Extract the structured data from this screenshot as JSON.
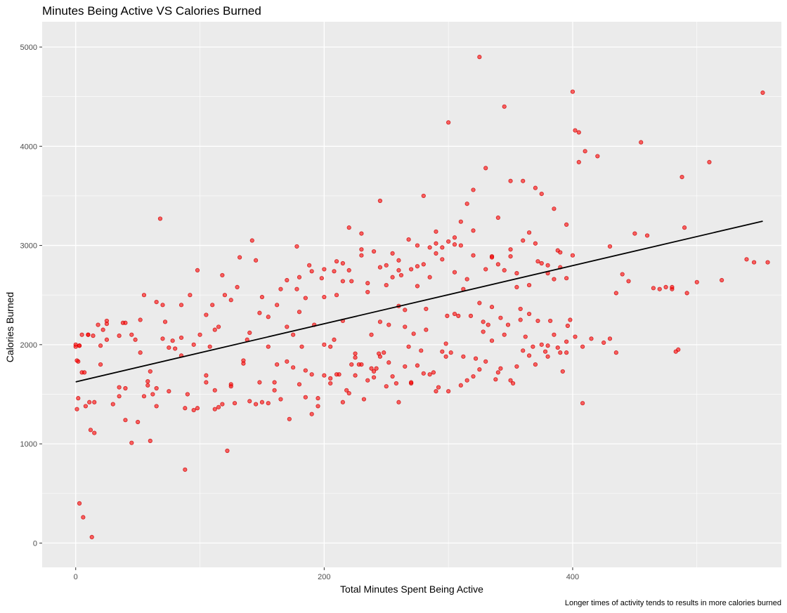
{
  "chart_data": {
    "type": "scatter",
    "title": "Minutes Being Active VS Calories Burned",
    "xlabel": "Total Minutes Spent Being Active",
    "ylabel": "Calories Burned",
    "caption": "Longer times of activity tends to results in more calories burned",
    "xlim": [
      -27,
      568
    ],
    "ylim": [
      -245,
      5255
    ],
    "x_ticks": [
      0,
      200,
      400
    ],
    "y_ticks": [
      0,
      1000,
      2000,
      3000,
      4000,
      5000
    ],
    "grid": true,
    "colors": {
      "points": "#ff0000",
      "line": "#000000",
      "panel": "#ebebeb",
      "grid": "#ffffff"
    },
    "trend_line": {
      "x": [
        0,
        553
      ],
      "y": [
        1625,
        3245
      ]
    },
    "series": [
      {
        "x": [
          0,
          1,
          2,
          3,
          5,
          5,
          8,
          10,
          12,
          15,
          18,
          20,
          22,
          25,
          30,
          35,
          38,
          40,
          45,
          50,
          52,
          55,
          58,
          60,
          62,
          65,
          68,
          70,
          72,
          75,
          80,
          85,
          88,
          90,
          95,
          98,
          100,
          105,
          108,
          110,
          112,
          115,
          118,
          120,
          125,
          128,
          130,
          135,
          138,
          140,
          142,
          145,
          148,
          150,
          155,
          160,
          162,
          165,
          170,
          172,
          175,
          178,
          180,
          182,
          185,
          188,
          190,
          195,
          198,
          200,
          205,
          208,
          210,
          212,
          215,
          218,
          220,
          222,
          225,
          228,
          230,
          232,
          235,
          238,
          240,
          242,
          245,
          248,
          250,
          252,
          255,
          258,
          260,
          262,
          265,
          268,
          270,
          272,
          275,
          278,
          280,
          282,
          285,
          288,
          290,
          292,
          295,
          298,
          300,
          302,
          305,
          308,
          310,
          312,
          315,
          318,
          320,
          322,
          325,
          328,
          330,
          332,
          335,
          338,
          340,
          342,
          345,
          348,
          350,
          352,
          355,
          358,
          360,
          362,
          365,
          368,
          370,
          372,
          375,
          378,
          380,
          382,
          385,
          388,
          390,
          392,
          395,
          398,
          400,
          402,
          405,
          408,
          410,
          415,
          420,
          425,
          430,
          435,
          440,
          445,
          450,
          455,
          460,
          465,
          470,
          480,
          485,
          490,
          500,
          510,
          520,
          540,
          553,
          0,
          2,
          3,
          7,
          11,
          14,
          20,
          25,
          35,
          40,
          48,
          52,
          58,
          65,
          70,
          78,
          85,
          92,
          98,
          105,
          112,
          118,
          125,
          132,
          140,
          148,
          155,
          162,
          170,
          178,
          185,
          192,
          200,
          208,
          215,
          222,
          230,
          238,
          245,
          252,
          260,
          268,
          275,
          282,
          290,
          298,
          305,
          312,
          320,
          328,
          335,
          342,
          350,
          358,
          365,
          372,
          380,
          388,
          395,
          402,
          150,
          160,
          170,
          180,
          190,
          200,
          210,
          220,
          230,
          240,
          250,
          260,
          270,
          280,
          290,
          300,
          310,
          320,
          330,
          340,
          350,
          360,
          370,
          380,
          390,
          15,
          25,
          35,
          45,
          55,
          65,
          75,
          85,
          95,
          105,
          115,
          125,
          135,
          145,
          155,
          165,
          175,
          185,
          195,
          205,
          215,
          225,
          235,
          245,
          255,
          265,
          275,
          285,
          295,
          305,
          315,
          325,
          335,
          345,
          355,
          365,
          375,
          385,
          395,
          1,
          3,
          6,
          10,
          13,
          40,
          60,
          88,
          112,
          122,
          244,
          299,
          396,
          405,
          408,
          430,
          435,
          475,
          480,
          483,
          488,
          492,
          546,
          557,
          205,
          215,
          225,
          235,
          245,
          255,
          265,
          275,
          285,
          295,
          305,
          315,
          325,
          335,
          345,
          355,
          365,
          375,
          385,
          395,
          180,
          190,
          200,
          210,
          220,
          230,
          240,
          250,
          260,
          270,
          280,
          290,
          300,
          310,
          320,
          330,
          340,
          350,
          360,
          370,
          380,
          390,
          400
        ],
        "y": [
          2000,
          1350,
          1460,
          1990,
          2100,
          1720,
          1380,
          2100,
          1140,
          1110,
          2200,
          1800,
          2150,
          2050,
          1400,
          1570,
          2220,
          1240,
          1010,
          1220,
          2250,
          2500,
          1590,
          1730,
          1500,
          1560,
          3270,
          2060,
          2230,
          1970,
          1960,
          2400,
          1360,
          1500,
          2000,
          1360,
          2100,
          1620,
          1980,
          2400,
          1350,
          2180,
          1400,
          2500,
          1600,
          1410,
          2580,
          1840,
          2050,
          1430,
          3050,
          2850,
          1620,
          2480,
          1980,
          1620,
          1800,
          2560,
          2650,
          1250,
          2100,
          2990,
          2330,
          1980,
          1470,
          2800,
          1700,
          1460,
          2670,
          2000,
          1660,
          2740,
          2500,
          1700,
          2240,
          1540,
          3180,
          2640,
          1910,
          1800,
          3120,
          1450,
          2620,
          2100,
          1730,
          1760,
          2230,
          1920,
          2800,
          1820,
          2920,
          1610,
          2390,
          2700,
          1780,
          3060,
          1610,
          2110,
          3000,
          1940,
          3500,
          2150,
          2980,
          1720,
          3140,
          1570,
          2980,
          2010,
          4240,
          1920,
          3080,
          2290,
          3240,
          1880,
          3420,
          2290,
          3150,
          1860,
          4900,
          2130,
          3780,
          2200,
          2890,
          1650,
          3280,
          2270,
          4400,
          2200,
          2890,
          1610,
          2580,
          2250,
          3650,
          2080,
          3130,
          1980,
          3580,
          2240,
          3520,
          1930,
          2720,
          2240,
          3370,
          1970,
          2930,
          1730,
          3210,
          2250,
          4550,
          2080,
          3840,
          1980,
          3950,
          2060,
          3900,
          2020,
          2990,
          2520,
          2710,
          2640,
          3120,
          4040,
          3100,
          2570,
          2560,
          2560,
          1950,
          3180,
          2630,
          3840,
          2650,
          2860,
          4540,
          1980,
          1830,
          1990,
          1720,
          1420,
          2090,
          1990,
          2240,
          2090,
          2220,
          2050,
          1920,
          1630,
          2430,
          2400,
          2040,
          2070,
          2500,
          2750,
          2300,
          2150,
          2700,
          2450,
          2880,
          2120,
          2320,
          2280,
          2400,
          2180,
          2560,
          2470,
          2200,
          2760,
          2050,
          2640,
          1800,
          2960,
          1760,
          3450,
          2200,
          2750,
          1980,
          2790,
          2360,
          2920,
          1880,
          3010,
          2560,
          3560,
          2230,
          2880,
          1760,
          3650,
          2360,
          2310,
          2840,
          1880,
          2950,
          2030,
          4160,
          1420,
          1540,
          1830,
          1600,
          1300,
          1690,
          1700,
          1510,
          1800,
          1670,
          1580,
          1420,
          1620,
          1710,
          1530,
          1530,
          1590,
          1680,
          1830,
          1720,
          1640,
          1940,
          1800,
          1990,
          1920,
          1420,
          2210,
          1480,
          2100,
          1480,
          1380,
          1530,
          1890,
          1340,
          1690,
          1370,
          1580,
          1810,
          1400,
          1410,
          1450,
          1770,
          1740,
          1380,
          1980,
          1420,
          1870,
          1640,
          1880,
          1680,
          2180,
          1790,
          1700,
          1930,
          2310,
          1640,
          1750,
          2040,
          2100,
          1780,
          1890,
          2000,
          2100,
          1920,
          1840,
          400,
          260,
          2100,
          60,
          1560,
          1030,
          740,
          1540,
          930,
          1910,
          2290,
          2190,
          4140,
          1410,
          2060,
          1920,
          2580,
          2580,
          1930,
          3690,
          2520,
          2830,
          2830,
          1610,
          2820,
          1690,
          2530,
          2780,
          2680,
          2350,
          2590,
          2680,
          2860,
          2730,
          2660,
          2420,
          2380,
          2750,
          2720,
          2600,
          2820,
          2660,
          2670,
          2680,
          2740,
          2480,
          2840,
          2750,
          2900,
          2940,
          2600,
          2850,
          2760,
          2810,
          3020,
          3040,
          3000,
          2900,
          2760,
          2810,
          2960,
          3050,
          3020,
          2800,
          2780,
          2900
        ]
      }
    ]
  }
}
